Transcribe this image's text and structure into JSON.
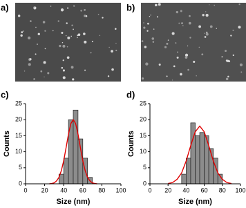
{
  "panel_labels": [
    "a)",
    "b)",
    "c)",
    "d)"
  ],
  "chart_data": [
    {
      "type": "histogram",
      "xlabel": "Size (nm)",
      "ylabel": "Counts",
      "bins": [
        35,
        40,
        45,
        50,
        55,
        60,
        65,
        70
      ],
      "values": [
        3,
        8,
        20,
        23,
        14,
        8,
        2
      ],
      "color": "#8c8c8c",
      "xlim": [
        0,
        100
      ],
      "ylim": [
        0,
        25
      ],
      "xticks": [
        0,
        20,
        40,
        60,
        80,
        100
      ],
      "yticks": [
        0,
        5,
        10,
        15,
        20,
        25
      ],
      "fit": {
        "color": "#e00000",
        "x": [
          25,
          27.5,
          30,
          32.5,
          35,
          37.5,
          40,
          42.5,
          45,
          47.5,
          50,
          52.5,
          55,
          57.5,
          60,
          62.5,
          65,
          67.5,
          70,
          72.5,
          75
        ],
        "values": [
          0,
          0.1,
          0.3,
          0.9,
          2.0,
          4.1,
          7.2,
          11.3,
          15.5,
          18.8,
          20,
          18.8,
          15.5,
          11.3,
          7.2,
          4.1,
          2.0,
          0.9,
          0.3,
          0.1,
          0
        ]
      }
    },
    {
      "type": "histogram",
      "xlabel": "Size (nm)",
      "ylabel": "Counts",
      "bins": [
        35,
        40,
        45,
        50,
        55,
        60,
        65,
        70,
        75,
        80
      ],
      "values": [
        3,
        8,
        19,
        15,
        16,
        15,
        11,
        8,
        3
      ],
      "color": "#8c8c8c",
      "xlim": [
        0,
        100
      ],
      "ylim": [
        0,
        25
      ],
      "xticks": [
        0,
        20,
        40,
        60,
        80,
        100
      ],
      "yticks": [
        0,
        5,
        10,
        15,
        20,
        25
      ],
      "fit": {
        "color": "#e00000",
        "x": [
          20,
          25,
          30,
          35,
          40,
          45,
          50,
          55,
          60,
          65,
          70,
          75,
          80,
          85,
          90
        ],
        "values": [
          0.1,
          0.4,
          1.4,
          3.4,
          7.1,
          11.9,
          16.2,
          18,
          16.2,
          11.9,
          7.1,
          3.4,
          1.4,
          0.4,
          0.1
        ]
      }
    }
  ]
}
